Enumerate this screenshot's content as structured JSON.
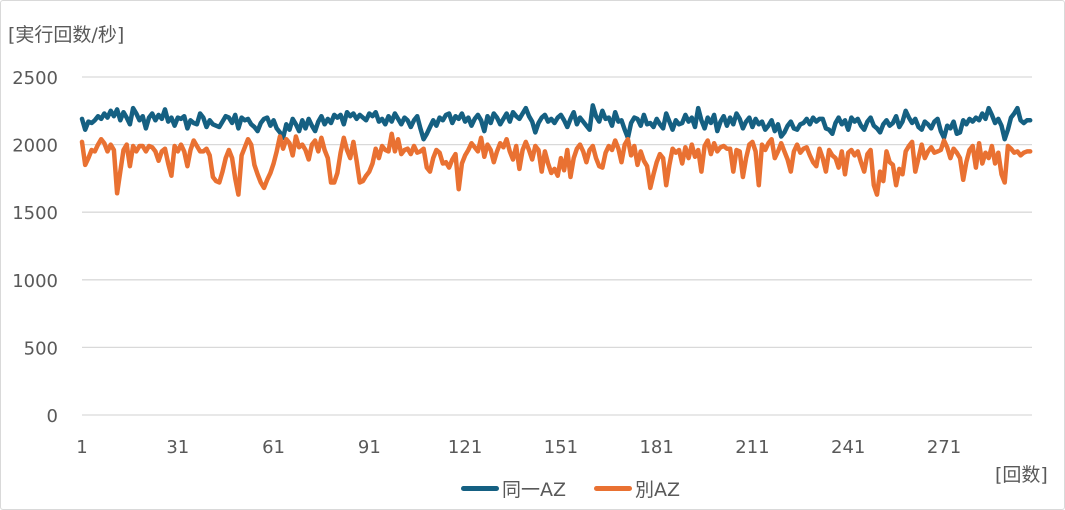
{
  "chart_data": {
    "type": "line",
    "title": "",
    "ylabel": "[実行回数/秒]",
    "xlabel": "[回数]",
    "ylim": [
      0,
      2500
    ],
    "yticks": [
      0,
      500,
      1000,
      1500,
      2000,
      2500
    ],
    "xticks": [
      1,
      31,
      61,
      91,
      121,
      151,
      181,
      211,
      241,
      271
    ],
    "xlim": [
      1,
      298
    ],
    "grid": true,
    "legend_position": "bottom",
    "series": [
      {
        "name": "同一AZ",
        "color": "#156082",
        "values": [
          2190,
          2110,
          2170,
          2160,
          2180,
          2210,
          2190,
          2230,
          2200,
          2250,
          2210,
          2260,
          2180,
          2240,
          2200,
          2150,
          2270,
          2230,
          2180,
          2210,
          2120,
          2200,
          2230,
          2180,
          2220,
          2190,
          2260,
          2170,
          2200,
          2140,
          2200,
          2190,
          2210,
          2120,
          2180,
          2160,
          2150,
          2230,
          2200,
          2130,
          2180,
          2150,
          2140,
          2130,
          2170,
          2210,
          2200,
          2160,
          2220,
          2120,
          2200,
          2180,
          2190,
          2150,
          2130,
          2100,
          2160,
          2190,
          2200,
          2140,
          2180,
          2120,
          2090,
          2050,
          2150,
          2110,
          2190,
          2150,
          2100,
          2180,
          2120,
          2190,
          2140,
          2100,
          2170,
          2210,
          2150,
          2190,
          2160,
          2220,
          2200,
          2220,
          2150,
          2240,
          2210,
          2230,
          2190,
          2220,
          2200,
          2180,
          2230,
          2210,
          2240,
          2170,
          2190,
          2150,
          2210,
          2170,
          2230,
          2190,
          2150,
          2200,
          2180,
          2130,
          2180,
          2210,
          2120,
          2040,
          2080,
          2130,
          2180,
          2140,
          2200,
          2180,
          2220,
          2230,
          2160,
          2210,
          2190,
          2230,
          2170,
          2200,
          2140,
          2190,
          2220,
          2180,
          2100,
          2210,
          2160,
          2230,
          2200,
          2150,
          2190,
          2230,
          2170,
          2240,
          2210,
          2190,
          2230,
          2270,
          2210,
          2170,
          2090,
          2160,
          2200,
          2220,
          2170,
          2190,
          2160,
          2200,
          2220,
          2180,
          2130,
          2190,
          2240,
          2150,
          2200,
          2170,
          2140,
          2110,
          2290,
          2210,
          2170,
          2250,
          2190,
          2200,
          2140,
          2240,
          2170,
          2180,
          2110,
          2050,
          2160,
          2200,
          2190,
          2140,
          2220,
          2150,
          2160,
          2130,
          2190,
          2150,
          2120,
          2230,
          2170,
          2110,
          2180,
          2150,
          2160,
          2220,
          2170,
          2200,
          2130,
          2270,
          2180,
          2120,
          2200,
          2160,
          2220,
          2100,
          2170,
          2210,
          2140,
          2200,
          2150,
          2230,
          2190,
          2120,
          2170,
          2200,
          2130,
          2190,
          2150,
          2170,
          2110,
          2140,
          2180,
          2100,
          2150,
          2060,
          2090,
          2140,
          2170,
          2120,
          2110,
          2150,
          2160,
          2190,
          2150,
          2200,
          2170,
          2190,
          2190,
          2120,
          2110,
          2080,
          2160,
          2200,
          2150,
          2180,
          2110,
          2200,
          2170,
          2190,
          2140,
          2110,
          2170,
          2200,
          2140,
          2120,
          2090,
          2150,
          2180,
          2140,
          2160,
          2210,
          2130,
          2170,
          2250,
          2200,
          2160,
          2190,
          2130,
          2110,
          2170,
          2150,
          2120,
          2170,
          2190,
          2100,
          2050,
          2140,
          2120,
          2170,
          2080,
          2090,
          2180,
          2150,
          2190,
          2170,
          2200,
          2180,
          2230,
          2190,
          2270,
          2220,
          2160,
          2190,
          2140,
          2040,
          2110,
          2200,
          2230,
          2270,
          2180,
          2160,
          2180,
          2180
        ]
      },
      {
        "name": "別AZ",
        "color": "#E97132",
        "values": [
          2020,
          1850,
          1900,
          1960,
          1950,
          2000,
          2040,
          2010,
          1950,
          2000,
          1960,
          1640,
          1800,
          1960,
          2000,
          1840,
          1990,
          1950,
          1990,
          1990,
          1950,
          1990,
          1980,
          1950,
          1880,
          1950,
          1970,
          1860,
          1770,
          1990,
          1950,
          2000,
          1950,
          1840,
          1960,
          2030,
          1990,
          1950,
          1950,
          1970,
          1920,
          1760,
          1730,
          1720,
          1800,
          1900,
          1960,
          1900,
          1750,
          1630,
          1920,
          1980,
          2040,
          2000,
          1850,
          1780,
          1720,
          1680,
          1740,
          1790,
          1860,
          1950,
          2060,
          1970,
          2040,
          2010,
          1920,
          2060,
          1980,
          2000,
          1960,
          1890,
          2000,
          2030,
          1950,
          2050,
          1960,
          1900,
          1720,
          1720,
          1790,
          1940,
          2050,
          1960,
          1900,
          2020,
          1880,
          1720,
          1730,
          1770,
          1800,
          1860,
          1970,
          1900,
          1990,
          1960,
          1950,
          2080,
          1950,
          2040,
          1930,
          1960,
          1970,
          1930,
          1990,
          1940,
          1950,
          1970,
          1830,
          1800,
          1900,
          1960,
          1940,
          1860,
          1870,
          1830,
          1890,
          1930,
          1670,
          1860,
          1920,
          1960,
          2010,
          1980,
          1950,
          2050,
          1910,
          2000,
          1960,
          1870,
          1950,
          2010,
          1980,
          2040,
          1950,
          1890,
          1990,
          1820,
          1960,
          2020,
          1960,
          1890,
          1990,
          1960,
          1800,
          1950,
          1860,
          1790,
          1820,
          1770,
          1900,
          1810,
          1960,
          1760,
          1900,
          1970,
          2000,
          1950,
          1870,
          1960,
          1990,
          1900,
          1840,
          1830,
          1940,
          1990,
          1960,
          2030,
          1970,
          1870,
          2000,
          2040,
          1920,
          1990,
          1850,
          1950,
          1880,
          1840,
          1680,
          1780,
          1870,
          1930,
          1900,
          1700,
          1850,
          1970,
          1940,
          1960,
          1860,
          1980,
          1900,
          2000,
          1910,
          1960,
          1800,
          1990,
          2030,
          1930,
          2010,
          1950,
          1980,
          1990,
          1970,
          1970,
          1800,
          1960,
          1950,
          1760,
          1900,
          2000,
          2020,
          1950,
          1700,
          2000,
          1960,
          2010,
          2040,
          1900,
          1950,
          2010,
          1950,
          1890,
          1800,
          1950,
          2000,
          1940,
          1970,
          1980,
          1920,
          1870,
          1840,
          1970,
          1900,
          1800,
          1960,
          1920,
          1900,
          1830,
          1950,
          1780,
          1940,
          1960,
          1920,
          1950,
          1870,
          1800,
          1930,
          1960,
          1700,
          1630,
          1800,
          1730,
          1950,
          1870,
          1850,
          1700,
          1820,
          1780,
          1950,
          1990,
          2020,
          1800,
          1900,
          2000,
          1900,
          1950,
          1980,
          1940,
          1950,
          1960,
          2030,
          1980,
          1900,
          1970,
          1940,
          1900,
          1740,
          1870,
          1960,
          1990,
          1830,
          2010,
          1860,
          1940,
          1900,
          1990,
          1860,
          1940,
          1780,
          1720,
          1990,
          1970,
          1940,
          1950,
          1920,
          1940,
          1950,
          1950
        ]
      }
    ]
  }
}
